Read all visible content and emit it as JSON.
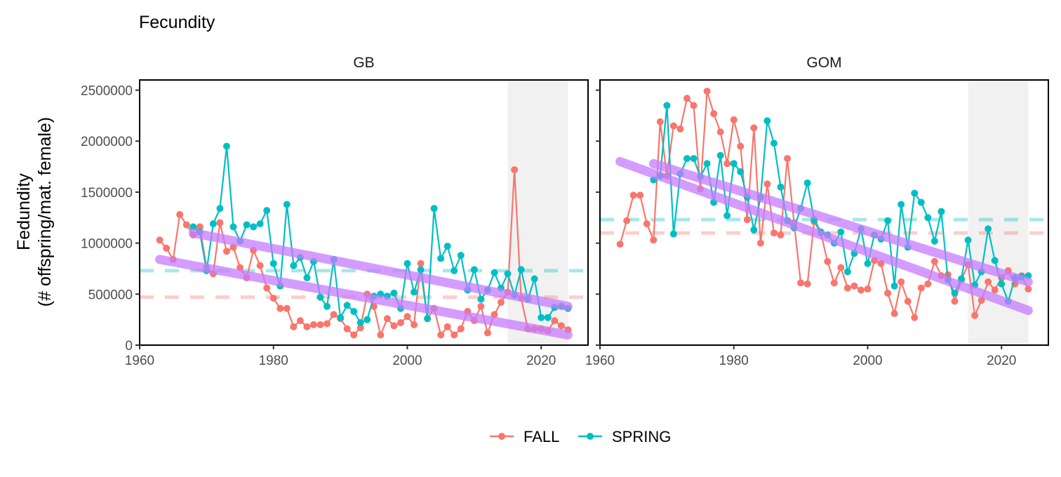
{
  "chart_data": {
    "type": "line",
    "title": "Fecundity",
    "ylabel_line1": "Fedundity",
    "ylabel_line2": "(# offspring/mat. female)",
    "xlabel": "",
    "xlim": [
      1960,
      2027
    ],
    "ylim": [
      0,
      2600000
    ],
    "x_ticks": [
      1960,
      1980,
      2000,
      2020
    ],
    "y_ticks": [
      0,
      500000,
      1000000,
      1500000,
      2000000,
      2500000
    ],
    "grid": false,
    "legend": {
      "position": "bottom",
      "entries": [
        {
          "name": "FALL",
          "color": "#F8766D"
        },
        {
          "name": "SPRING",
          "color": "#00BFC4"
        }
      ]
    },
    "colors": {
      "FALL": "#F8766D",
      "SPRING": "#00BFC4",
      "trend": "#C77CFF",
      "shade": "#EBEBEB"
    },
    "panels": [
      {
        "name": "GB",
        "shaded_x": [
          2015,
          2024
        ],
        "series": [
          {
            "name": "FALL",
            "mean": 470000,
            "x": [
              1963,
              1964,
              1965,
              1966,
              1967,
              1968,
              1969,
              1970,
              1971,
              1972,
              1973,
              1974,
              1975,
              1976,
              1977,
              1978,
              1979,
              1980,
              1981,
              1982,
              1983,
              1984,
              1985,
              1986,
              1987,
              1988,
              1989,
              1990,
              1991,
              1992,
              1993,
              1994,
              1995,
              1996,
              1997,
              1998,
              1999,
              2000,
              2001,
              2002,
              2003,
              2004,
              2005,
              2006,
              2007,
              2008,
              2009,
              2010,
              2011,
              2012,
              2013,
              2014,
              2015,
              2016,
              2017,
              2018,
              2019,
              2020,
              2021,
              2022,
              2023,
              2024
            ],
            "y": [
              1030000,
              950000,
              840000,
              1280000,
              1180000,
              1080000,
              1160000,
              760000,
              700000,
              1200000,
              920000,
              960000,
              760000,
              660000,
              930000,
              780000,
              560000,
              460000,
              360000,
              360000,
              180000,
              240000,
              180000,
              200000,
              200000,
              210000,
              300000,
              260000,
              160000,
              100000,
              170000,
              500000,
              380000,
              100000,
              260000,
              190000,
              220000,
              280000,
              200000,
              800000,
              260000,
              360000,
              100000,
              180000,
              100000,
              160000,
              330000,
              240000,
              380000,
              120000,
              300000,
              420000,
              520000,
              1720000,
              460000,
              160000,
              160000,
              160000,
              140000,
              240000,
              190000,
              150000
            ]
          },
          {
            "name": "SPRING",
            "mean": 730000,
            "x": [
              1968,
              1969,
              1970,
              1971,
              1972,
              1973,
              1974,
              1975,
              1976,
              1977,
              1978,
              1979,
              1980,
              1981,
              1982,
              1983,
              1984,
              1985,
              1986,
              1987,
              1988,
              1989,
              1990,
              1991,
              1992,
              1993,
              1994,
              1995,
              1996,
              1997,
              1998,
              1999,
              2000,
              2001,
              2002,
              2003,
              2004,
              2005,
              2006,
              2007,
              2008,
              2009,
              2010,
              2011,
              2012,
              2013,
              2014,
              2015,
              2016,
              2017,
              2018,
              2019,
              2020,
              2021,
              2022,
              2023,
              2024
            ],
            "y": [
              1160000,
              1110000,
              730000,
              1190000,
              1340000,
              1950000,
              1160000,
              1020000,
              1180000,
              1160000,
              1190000,
              1320000,
              800000,
              580000,
              1380000,
              780000,
              860000,
              660000,
              820000,
              470000,
              380000,
              840000,
              270000,
              390000,
              330000,
              220000,
              250000,
              480000,
              500000,
              480000,
              510000,
              360000,
              800000,
              520000,
              740000,
              260000,
              1340000,
              850000,
              970000,
              730000,
              880000,
              540000,
              740000,
              450000,
              540000,
              710000,
              560000,
              700000,
              490000,
              740000,
              450000,
              650000,
              270000,
              270000,
              370000,
              380000,
              360000
            ]
          }
        ],
        "trends": [
          {
            "name": "FALL",
            "x": [
              1963,
              2024
            ],
            "y": [
              840000,
              100000
            ]
          },
          {
            "name": "SPRING",
            "x": [
              1968,
              2024
            ],
            "y": [
              1100000,
              380000
            ]
          }
        ]
      },
      {
        "name": "GOM",
        "shaded_x": [
          2015,
          2024
        ],
        "series": [
          {
            "name": "FALL",
            "mean": 1100000,
            "x": [
              1963,
              1964,
              1965,
              1966,
              1967,
              1968,
              1969,
              1970,
              1971,
              1972,
              1973,
              1974,
              1975,
              1976,
              1977,
              1978,
              1979,
              1980,
              1981,
              1982,
              1983,
              1984,
              1985,
              1986,
              1987,
              1988,
              1989,
              1990,
              1991,
              1992,
              1993,
              1994,
              1995,
              1996,
              1997,
              1998,
              1999,
              2000,
              2001,
              2002,
              2003,
              2004,
              2005,
              2006,
              2007,
              2008,
              2009,
              2010,
              2011,
              2012,
              2013,
              2014,
              2015,
              2016,
              2017,
              2018,
              2019,
              2020,
              2021,
              2022,
              2023,
              2024
            ],
            "y": [
              990000,
              1220000,
              1470000,
              1470000,
              1190000,
              1030000,
              2190000,
              1660000,
              2150000,
              2120000,
              2420000,
              2350000,
              1530000,
              2490000,
              2270000,
              2090000,
              1780000,
              2210000,
              1950000,
              1230000,
              2130000,
              1000000,
              1580000,
              1100000,
              1080000,
              1830000,
              1200000,
              610000,
              600000,
              1210000,
              1100000,
              820000,
              610000,
              760000,
              560000,
              580000,
              540000,
              550000,
              830000,
              800000,
              510000,
              310000,
              620000,
              430000,
              270000,
              560000,
              600000,
              820000,
              680000,
              690000,
              430000,
              640000,
              790000,
              290000,
              440000,
              620000,
              540000,
              660000,
              730000,
              600000,
              680000,
              550000
            ]
          },
          {
            "name": "SPRING",
            "mean": 1230000,
            "x": [
              1968,
              1969,
              1970,
              1971,
              1972,
              1973,
              1974,
              1975,
              1976,
              1977,
              1978,
              1979,
              1980,
              1981,
              1982,
              1983,
              1984,
              1985,
              1986,
              1987,
              1988,
              1989,
              1990,
              1991,
              1992,
              1993,
              1994,
              1995,
              1996,
              1997,
              1998,
              1999,
              2000,
              2001,
              2002,
              2003,
              2004,
              2005,
              2006,
              2007,
              2008,
              2009,
              2010,
              2011,
              2012,
              2013,
              2014,
              2015,
              2016,
              2017,
              2018,
              2019,
              2020,
              2021,
              2022,
              2023,
              2024
            ],
            "y": [
              1620000,
              1660000,
              2350000,
              1090000,
              1680000,
              1830000,
              1830000,
              1650000,
              1780000,
              1400000,
              1860000,
              1270000,
              1780000,
              1700000,
              1450000,
              1130000,
              1450000,
              2200000,
              1980000,
              1550000,
              1220000,
              1150000,
              1340000,
              1590000,
              1230000,
              1110000,
              1080000,
              1000000,
              1110000,
              720000,
              900000,
              1140000,
              800000,
              1080000,
              1040000,
              1220000,
              580000,
              1380000,
              960000,
              1490000,
              1400000,
              1250000,
              1020000,
              1310000,
              640000,
              510000,
              650000,
              1030000,
              590000,
              720000,
              1140000,
              830000,
              600000,
              430000,
              660000,
              670000,
              680000
            ]
          }
        ],
        "trends": [
          {
            "name": "FALL",
            "x": [
              1963,
              2024
            ],
            "y": [
              1800000,
              340000
            ]
          },
          {
            "name": "SPRING",
            "x": [
              1968,
              2024
            ],
            "y": [
              1780000,
              620000
            ]
          }
        ]
      }
    ]
  }
}
